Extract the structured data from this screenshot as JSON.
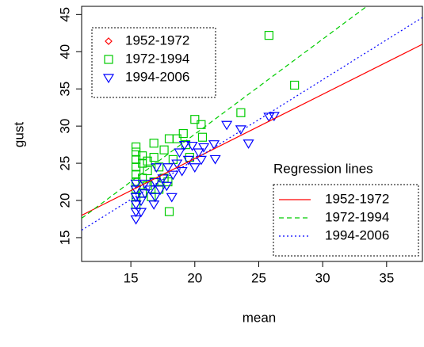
{
  "chart_data": {
    "type": "scatter",
    "xlabel": "mean",
    "ylabel": "gust",
    "xlim": [
      11.15,
      37.8
    ],
    "ylim": [
      11.8,
      46.1
    ],
    "xticks": [
      15,
      20,
      25,
      30,
      35
    ],
    "yticks": [
      15,
      20,
      25,
      30,
      35,
      40,
      45
    ],
    "series": [
      {
        "name": "1952-1972",
        "color": "#ff0000",
        "marker": "diamond",
        "x": [],
        "y": []
      },
      {
        "name": "1972-1994",
        "color": "#00cc00",
        "marker": "square",
        "x": [
          15.4,
          15.4,
          15.4,
          15.4,
          15.4,
          15.4,
          15.4,
          15.4,
          15.4,
          15.9,
          15.9,
          15.9,
          15.9,
          16.3,
          16.3,
          16.3,
          16.8,
          16.8,
          16.8,
          17.2,
          17.2,
          17.6,
          17.6,
          18.0,
          18.0,
          18.3,
          18.6,
          19.1,
          19.3,
          19.6,
          20.0,
          20.5,
          20.6,
          23.6,
          25.8,
          27.8,
          16.6,
          17.9
        ],
        "y": [
          19.5,
          20.5,
          21.5,
          22.5,
          23.5,
          24.5,
          25.5,
          26.5,
          27.2,
          21,
          23,
          25,
          26,
          22,
          24,
          25.3,
          22.5,
          25.8,
          27.7,
          21.5,
          24.5,
          23,
          26.8,
          28.3,
          18.5,
          25.5,
          28.3,
          29,
          27.5,
          25.8,
          30.9,
          30.2,
          28.5,
          31.8,
          42.2,
          35.5,
          20.5,
          22.5
        ]
      },
      {
        "name": "1994-2006",
        "color": "#0000ff",
        "marker": "triangle-down",
        "x": [
          15.4,
          15.4,
          15.4,
          15.4,
          15.4,
          15.4,
          15.8,
          15.8,
          16.1,
          16.1,
          16.5,
          16.9,
          16.9,
          17.0,
          17.3,
          17.5,
          17.8,
          17.9,
          18.2,
          18.3,
          18.6,
          18.8,
          19.0,
          19.2,
          19.5,
          19.8,
          20.0,
          20.3,
          20.5,
          20.7,
          21.5,
          21.6,
          22.5,
          23.6,
          24.2,
          25.8,
          26.2,
          16.8
        ],
        "y": [
          17.5,
          18.5,
          19.5,
          20.5,
          21.5,
          22.3,
          18.5,
          20,
          21,
          22.3,
          21.5,
          20.5,
          22.5,
          24.5,
          21.5,
          23,
          22,
          24.5,
          20.5,
          23.5,
          25,
          26.5,
          24,
          27.5,
          25.5,
          27.4,
          24.5,
          26.5,
          25.5,
          27.2,
          27.6,
          25.6,
          30.2,
          29.6,
          27.7,
          31.3,
          31.4,
          19.5
        ]
      }
    ],
    "regression_title": "Regression lines",
    "regression_lines": [
      {
        "name": "1952-1972",
        "color": "#ff0000",
        "dash": "solid",
        "x": [
          11.15,
          37.8
        ],
        "y": [
          18.0,
          41.0
        ]
      },
      {
        "name": "1972-1994",
        "color": "#00cc00",
        "dash": "dashed",
        "x": [
          11.15,
          33.45
        ],
        "y": [
          17.6,
          46.1
        ]
      },
      {
        "name": "1994-2006",
        "color": "#0000ff",
        "dash": "dotted",
        "x": [
          11.15,
          37.8
        ],
        "y": [
          16.0,
          44.6
        ]
      }
    ]
  }
}
